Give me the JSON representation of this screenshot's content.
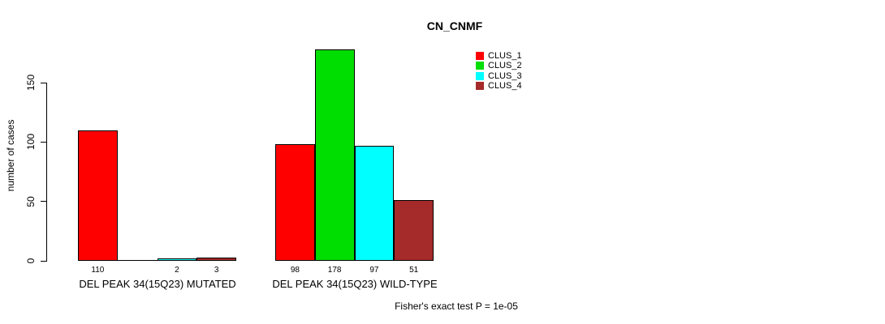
{
  "title": "CN_CNMF",
  "caption": "Fisher's exact test P = 1e-05",
  "y_axis": {
    "label": "number of cases",
    "tick_labels": [
      "0",
      "50",
      "100",
      "150"
    ]
  },
  "legend": {
    "items": [
      {
        "label": "CLUS_1",
        "color": "#FF0000"
      },
      {
        "label": "CLUS_2",
        "color": "#00DD00"
      },
      {
        "label": "CLUS_3",
        "color": "#00FFFF"
      },
      {
        "label": "CLUS_4",
        "color": "#A52A2A"
      }
    ]
  },
  "chart_data": {
    "type": "bar",
    "title": "CN_CNMF",
    "xlabel": "",
    "ylabel": "number of cases",
    "ylim": [
      0,
      150
    ],
    "yticks": [
      0,
      50,
      100,
      150
    ],
    "grid": false,
    "legend_position": "top-right",
    "categories": [
      "DEL PEAK 34(15Q23) MUTATED",
      "DEL PEAK 34(15Q23) WILD-TYPE"
    ],
    "series": [
      {
        "name": "CLUS_1",
        "color": "#FF0000",
        "values": [
          110,
          98
        ]
      },
      {
        "name": "CLUS_2",
        "color": "#00DD00",
        "values": [
          0,
          178
        ]
      },
      {
        "name": "CLUS_3",
        "color": "#00FFFF",
        "values": [
          2,
          97
        ]
      },
      {
        "name": "CLUS_4",
        "color": "#A52A2A",
        "values": [
          3,
          51
        ]
      }
    ],
    "bar_value_labels_shown": true,
    "zero_value_labels_hidden": true,
    "annotation": "Fisher's exact test P = 1e-05"
  }
}
